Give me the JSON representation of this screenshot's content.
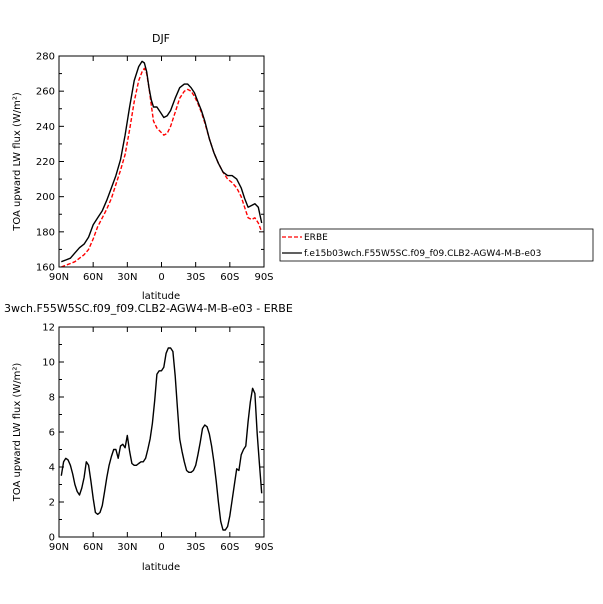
{
  "chart_data": [
    {
      "type": "line",
      "title": "DJF",
      "xlabel": "latitude",
      "ylabel": "TOA upward LW flux (W/m²)",
      "xticks": [
        "90N",
        "60N",
        "30N",
        "0",
        "30S",
        "60S",
        "90S"
      ],
      "xlim": [
        90,
        -90
      ],
      "ylim": [
        160,
        280
      ],
      "yticks": [
        160,
        180,
        200,
        220,
        240,
        260,
        280
      ],
      "legend": "right, outside plot",
      "grid": false,
      "series": [
        {
          "name": "ERBE",
          "color": "#ff0000",
          "style": "dashed",
          "x": [
            88,
            84,
            80,
            76,
            72,
            68,
            64,
            60,
            56,
            52,
            48,
            44,
            40,
            36,
            32,
            28,
            24,
            20,
            17,
            15,
            13,
            11,
            9,
            7,
            4,
            1,
            -2,
            -5,
            -8,
            -12,
            -16,
            -20,
            -23,
            -26,
            -29,
            -32,
            -35,
            -38,
            -42,
            -46,
            -50,
            -54,
            -58,
            -62,
            -66,
            -70,
            -73,
            -76,
            -79,
            -82,
            -85,
            -88
          ],
          "values": [
            160,
            161,
            162,
            163,
            165,
            167,
            170,
            176,
            183,
            188,
            193,
            199,
            207,
            215,
            224,
            238,
            254,
            266,
            271,
            273,
            270,
            262,
            252,
            243,
            239,
            237,
            235,
            236,
            240,
            248,
            256,
            260,
            261,
            260,
            257,
            253,
            248,
            242,
            233,
            225,
            219,
            214,
            210,
            208,
            205,
            200,
            194,
            188,
            187,
            188,
            185,
            180
          ]
        },
        {
          "name": "f.e15b03wch.F55W5SC.f09_f09.CLB2-AGW4-M-B-e03",
          "color": "#000000",
          "style": "solid",
          "x": [
            88,
            84,
            80,
            76,
            72,
            68,
            64,
            60,
            56,
            52,
            48,
            44,
            40,
            36,
            32,
            28,
            24,
            20,
            17,
            15,
            13,
            11,
            9,
            7,
            4,
            1,
            -2,
            -5,
            -8,
            -12,
            -16,
            -20,
            -23,
            -26,
            -29,
            -32,
            -35,
            -38,
            -42,
            -46,
            -50,
            -54,
            -58,
            -62,
            -66,
            -70,
            -73,
            -76,
            -79,
            -82,
            -85,
            -88
          ],
          "values": [
            163,
            164,
            165,
            168,
            171,
            173,
            177,
            184,
            188,
            192,
            198,
            205,
            212,
            221,
            235,
            251,
            266,
            274,
            277,
            276,
            271,
            262,
            255,
            251,
            251,
            248,
            245,
            246,
            249,
            256,
            262,
            264,
            264,
            262,
            259,
            254,
            249,
            243,
            233,
            225,
            219,
            214,
            212,
            212,
            210,
            205,
            199,
            194,
            195,
            196,
            194,
            185
          ]
        }
      ]
    },
    {
      "type": "line",
      "title": "3wch.F55W5SC.f09_f09.CLB2-AGW4-M-B-e03 - ERBE",
      "xlabel": "latitude",
      "ylabel": "TOA upward LW flux (W/m²)",
      "xticks": [
        "90N",
        "60N",
        "30N",
        "0",
        "30S",
        "60S",
        "90S"
      ],
      "xlim": [
        90,
        -90
      ],
      "ylim": [
        0,
        12
      ],
      "yticks": [
        0,
        2,
        4,
        6,
        8,
        10,
        12
      ],
      "grid": false,
      "series": [
        {
          "color": "#000000",
          "style": "solid",
          "x": [
            88,
            86,
            84,
            82,
            80,
            78,
            76,
            74,
            72,
            70,
            68,
            66,
            64,
            62,
            60,
            58,
            56,
            54,
            52,
            50,
            48,
            46,
            44,
            42,
            40,
            38,
            36,
            34,
            32,
            30,
            28,
            26,
            24,
            22,
            20,
            18,
            16,
            14,
            12,
            10,
            8,
            6,
            4,
            2,
            0,
            -2,
            -4,
            -6,
            -8,
            -10,
            -12,
            -14,
            -16,
            -18,
            -20,
            -22,
            -24,
            -26,
            -28,
            -30,
            -32,
            -34,
            -36,
            -38,
            -40,
            -42,
            -44,
            -46,
            -48,
            -50,
            -52,
            -54,
            -56,
            -58,
            -60,
            -62,
            -64,
            -66,
            -68,
            -70,
            -72,
            -74,
            -76,
            -78,
            -80,
            -82,
            -84,
            -86,
            -88
          ],
          "values": [
            3.5,
            4.3,
            4.5,
            4.4,
            4.1,
            3.6,
            3.0,
            2.6,
            2.4,
            2.8,
            3.4,
            4.3,
            4.1,
            3.2,
            2.2,
            1.4,
            1.3,
            1.4,
            1.8,
            2.6,
            3.4,
            4.1,
            4.6,
            5.0,
            5.0,
            4.5,
            5.2,
            5.3,
            5.1,
            5.8,
            4.9,
            4.2,
            4.1,
            4.1,
            4.2,
            4.3,
            4.3,
            4.5,
            5.0,
            5.6,
            6.5,
            7.8,
            9.3,
            9.5,
            9.5,
            9.7,
            10.5,
            10.8,
            10.8,
            10.6,
            9.2,
            7.4,
            5.6,
            4.9,
            4.3,
            3.8,
            3.7,
            3.7,
            3.8,
            4.1,
            4.7,
            5.4,
            6.2,
            6.4,
            6.3,
            5.9,
            5.2,
            4.3,
            3.2,
            2.0,
            0.9,
            0.4,
            0.4,
            0.6,
            1.2,
            2.1,
            3.0,
            3.9,
            3.8,
            4.7,
            5.0,
            5.2,
            6.6,
            7.7,
            8.5,
            8.2,
            5.9,
            4.2,
            2.5
          ]
        }
      ]
    }
  ]
}
